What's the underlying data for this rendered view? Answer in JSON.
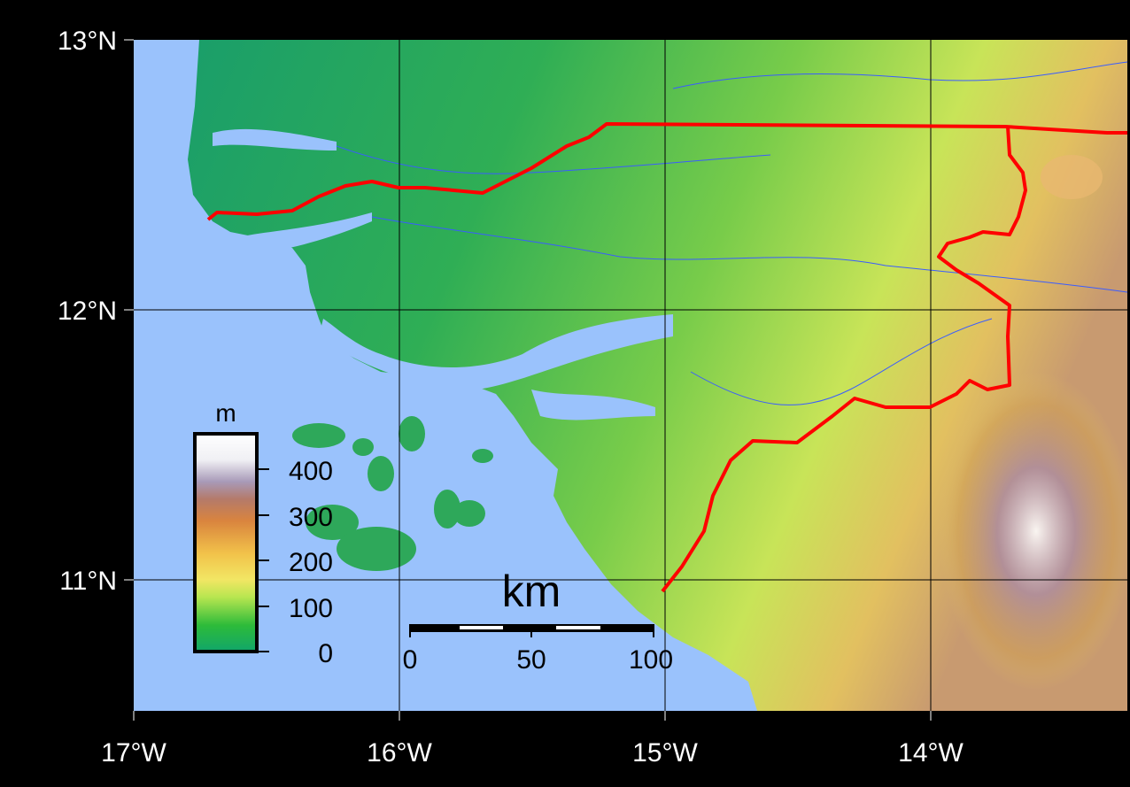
{
  "map": {
    "latitude_labels": [
      "13°N",
      "12°N",
      "11°N"
    ],
    "longitude_labels": [
      "17°W",
      "16°W",
      "15°W",
      "14°W"
    ],
    "colors": {
      "ocean": "#9ac2fc",
      "border": "#ff0000",
      "rivers": "#3a5cff",
      "background": "#000000"
    }
  },
  "legend": {
    "unit": "m",
    "ticks": [
      "400",
      "300",
      "200",
      "100",
      "0"
    ],
    "gradient_colors": [
      "#11a66a",
      "#2dbb3a",
      "#b8e650",
      "#f2e664",
      "#f2c24a",
      "#d9843e",
      "#b47a6a",
      "#a89ab8",
      "#ffffff"
    ]
  },
  "scale_bar": {
    "unit": "km",
    "ticks": [
      "0",
      "50",
      "100"
    ]
  }
}
